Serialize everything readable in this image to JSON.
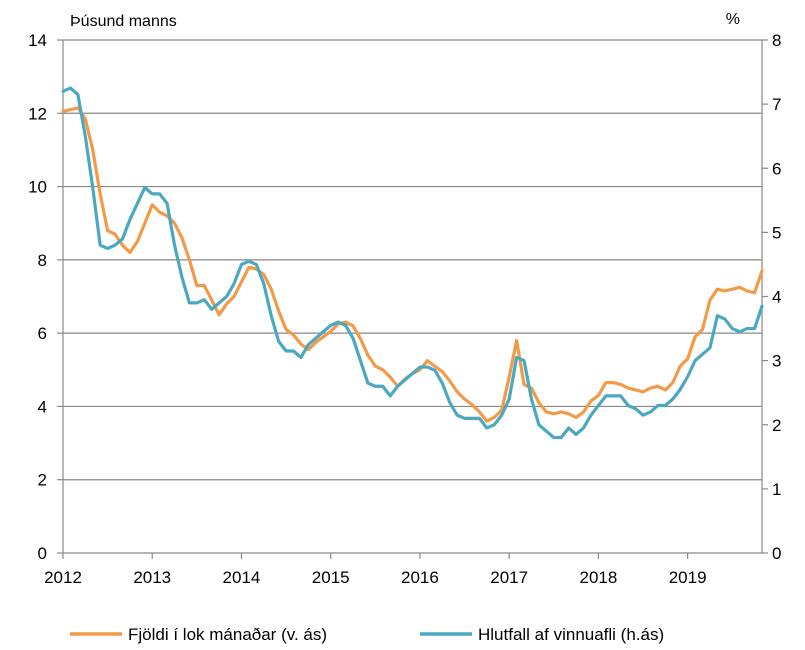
{
  "chart_data": {
    "type": "line",
    "left_unit_label": "Þúsund manns",
    "right_unit_label": "%",
    "ylim_left": [
      0,
      14
    ],
    "ylim_right": [
      0,
      8
    ],
    "yticks_left": [
      "0",
      "2",
      "4",
      "6",
      "8",
      "10",
      "12",
      "14"
    ],
    "yticks_right": [
      "0",
      "1",
      "2",
      "3",
      "4",
      "5",
      "6",
      "7",
      "8"
    ],
    "x_tick_labels": [
      "2012",
      "2013",
      "2014",
      "2015",
      "2016",
      "2017",
      "2018",
      "2019"
    ],
    "grid": true,
    "legend_position": "bottom",
    "colors": {
      "series_left": "#F39A48",
      "series_right": "#4BA8C1",
      "grid": "#898989",
      "axis": "#898989"
    },
    "series": [
      {
        "name": "Fjöldi í lok mánaðar (v. ás)",
        "axis": "left",
        "x_start": "2012-01",
        "frequency": "monthly",
        "values": [
          12.05,
          12.1,
          12.15,
          11.85,
          11.0,
          9.8,
          8.8,
          8.7,
          8.4,
          8.2,
          8.5,
          9.0,
          9.5,
          9.3,
          9.2,
          9.0,
          8.6,
          8.0,
          7.3,
          7.3,
          6.9,
          6.5,
          6.8,
          7.0,
          7.4,
          7.8,
          7.75,
          7.6,
          7.2,
          6.6,
          6.1,
          5.95,
          5.7,
          5.55,
          5.75,
          5.9,
          6.05,
          6.25,
          6.3,
          6.2,
          5.85,
          5.4,
          5.1,
          5.0,
          4.8,
          4.55,
          4.75,
          4.9,
          5.0,
          5.25,
          5.1,
          4.95,
          4.7,
          4.4,
          4.2,
          4.05,
          3.85,
          3.6,
          3.7,
          3.9,
          4.8,
          5.8,
          4.6,
          4.5,
          4.1,
          3.85,
          3.8,
          3.85,
          3.8,
          3.7,
          3.85,
          4.15,
          4.3,
          4.65,
          4.65,
          4.6,
          4.5,
          4.45,
          4.4,
          4.5,
          4.55,
          4.45,
          4.65,
          5.1,
          5.3,
          5.9,
          6.1,
          6.9,
          7.2,
          7.15,
          7.2,
          7.25,
          7.15,
          7.1,
          7.7
        ]
      },
      {
        "name": "Hlutfall af vinnuafli (h.ás)",
        "axis": "right",
        "x_start": "2012-01",
        "frequency": "monthly",
        "values": [
          7.2,
          7.25,
          7.15,
          6.5,
          5.7,
          4.8,
          4.75,
          4.8,
          4.9,
          5.2,
          5.45,
          5.7,
          5.6,
          5.6,
          5.45,
          4.8,
          4.3,
          3.9,
          3.9,
          3.95,
          3.8,
          3.9,
          4.0,
          4.2,
          4.5,
          4.55,
          4.5,
          4.2,
          3.7,
          3.3,
          3.15,
          3.15,
          3.05,
          3.25,
          3.35,
          3.45,
          3.55,
          3.6,
          3.55,
          3.35,
          3.0,
          2.65,
          2.6,
          2.6,
          2.45,
          2.6,
          2.7,
          2.8,
          2.9,
          2.9,
          2.85,
          2.65,
          2.35,
          2.15,
          2.1,
          2.1,
          2.1,
          1.95,
          2.0,
          2.15,
          2.4,
          3.05,
          3.0,
          2.4,
          2.0,
          1.9,
          1.8,
          1.8,
          1.95,
          1.85,
          1.95,
          2.15,
          2.3,
          2.45,
          2.45,
          2.45,
          2.3,
          2.25,
          2.15,
          2.2,
          2.3,
          2.3,
          2.4,
          2.55,
          2.75,
          3.0,
          3.1,
          3.2,
          3.7,
          3.65,
          3.5,
          3.45,
          3.5,
          3.5,
          3.85
        ]
      }
    ]
  }
}
